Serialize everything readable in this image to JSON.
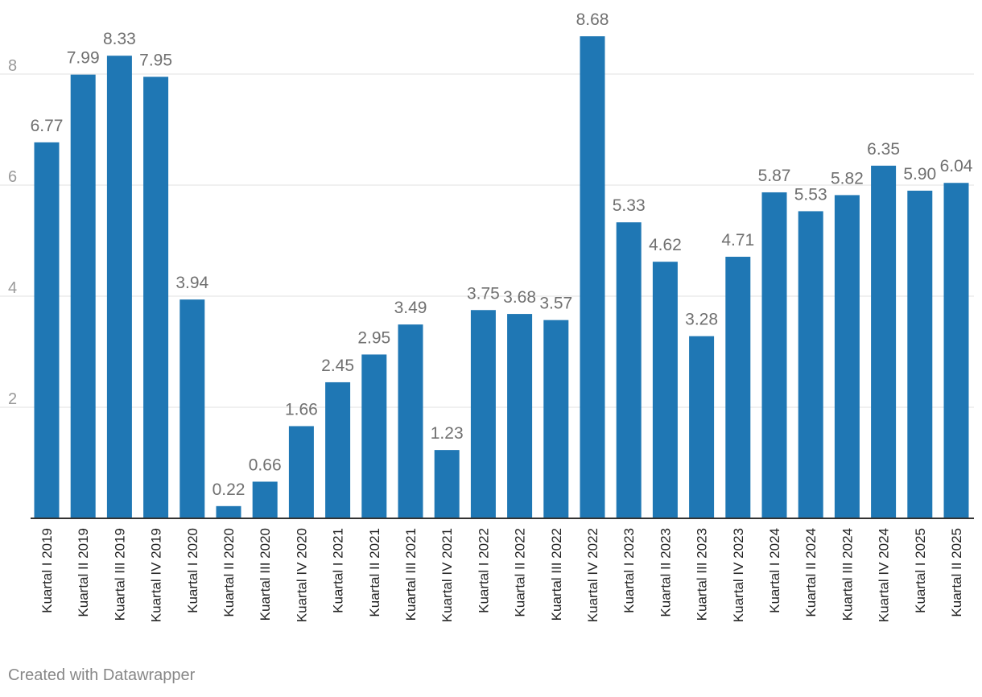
{
  "chart_data": {
    "type": "bar",
    "title": "",
    "xlabel": "",
    "ylabel": "",
    "ylim": [
      0,
      9
    ],
    "yticks": [
      2,
      4,
      6,
      8
    ],
    "grid": true,
    "legend": "none",
    "bar_color": "#1f77b4",
    "categories": [
      "Kuartal I 2019",
      "Kuartal II 2019",
      "Kuartal III 2019",
      "Kuartal IV 2019",
      "Kuartal I 2020",
      "Kuartal II 2020",
      "Kuartal III 2020",
      "Kuartal IV 2020",
      "Kuartal I 2021",
      "Kuartal II 2021",
      "Kuartal III 2021",
      "Kuartal IV 2021",
      "Kuartal I 2022",
      "Kuartal II 2022",
      "Kuartal III 2022",
      "Kuartal IV 2022",
      "Kuartal I 2023",
      "Kuartal II 2023",
      "Kuartal III 2023",
      "Kuartal IV 2023",
      "Kuartal I 2024",
      "Kuartal II 2024",
      "Kuartal III 2024",
      "Kuartal IV 2024",
      "Kuartal I 2025",
      "Kuartal II 2025"
    ],
    "values": [
      6.77,
      7.99,
      8.33,
      7.95,
      3.94,
      0.22,
      0.66,
      1.66,
      2.45,
      2.95,
      3.49,
      1.23,
      3.75,
      3.68,
      3.57,
      8.68,
      5.33,
      4.62,
      3.28,
      4.71,
      5.87,
      5.53,
      5.82,
      6.35,
      5.9,
      6.04
    ],
    "value_labels": [
      "6.77",
      "7.99",
      "8.33",
      "7.95",
      "3.94",
      "0.22",
      "0.66",
      "1.66",
      "2.45",
      "2.95",
      "3.49",
      "1.23",
      "3.75",
      "3.68",
      "3.57",
      "8.68",
      "5.33",
      "4.62",
      "3.28",
      "4.71",
      "5.87",
      "5.53",
      "5.82",
      "6.35",
      "5.90",
      "6.04"
    ]
  },
  "footer": {
    "credit": "Created with Datawrapper"
  },
  "colors": {
    "bar": "#1f77b4",
    "grid": "#e0e0e0",
    "axis": "#333333",
    "label": "#707070",
    "tick": "#999999"
  }
}
